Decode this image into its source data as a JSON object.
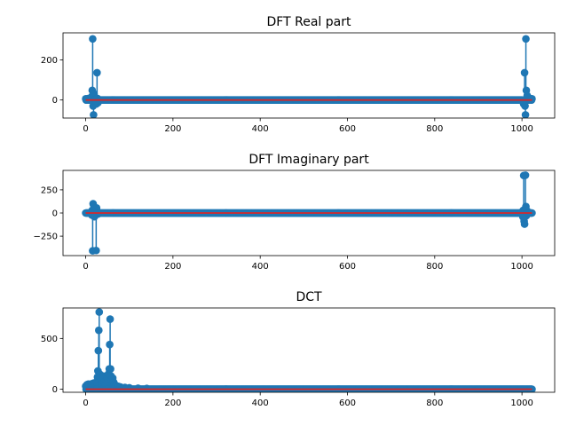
{
  "figure": {
    "colors": {
      "stem": "#1f77b4",
      "baseline": "#d62728"
    }
  },
  "chart_data": [
    {
      "type": "stem",
      "title": "DFT Real part",
      "xlim": [
        -52,
        1075
      ],
      "ylim": [
        -90,
        335
      ],
      "xticks": [
        0,
        200,
        400,
        600,
        800,
        1000
      ],
      "yticks": [
        0,
        200
      ],
      "n": 1024,
      "points": [
        [
          0,
          6
        ],
        [
          5,
          7
        ],
        [
          10,
          9
        ],
        [
          14,
          18
        ],
        [
          15,
          48
        ],
        [
          16,
          305
        ],
        [
          17,
          -30
        ],
        [
          18,
          -74
        ],
        [
          19,
          30
        ],
        [
          20,
          2
        ],
        [
          22,
          -12
        ],
        [
          24,
          -20
        ],
        [
          25,
          -8
        ],
        [
          26,
          136
        ],
        [
          27,
          8
        ],
        [
          28,
          -14
        ],
        [
          30,
          -4
        ],
        [
          1001,
          -4
        ],
        [
          1003,
          -12
        ],
        [
          1004,
          -20
        ],
        [
          1005,
          -8
        ],
        [
          1006,
          136
        ],
        [
          1007,
          -30
        ],
        [
          1008,
          -74
        ],
        [
          1009,
          305
        ],
        [
          1010,
          48
        ],
        [
          1012,
          22
        ],
        [
          1015,
          10
        ],
        [
          1019,
          8
        ],
        [
          1023,
          6
        ]
      ],
      "baseline": 0
    },
    {
      "type": "stem",
      "title": "DFT Imaginary part",
      "xlim": [
        -52,
        1075
      ],
      "ylim": [
        -460,
        460
      ],
      "xticks": [
        0,
        200,
        400,
        600,
        800,
        1000
      ],
      "yticks": [
        -250,
        0,
        250
      ],
      "n": 1024,
      "points": [
        [
          0,
          0
        ],
        [
          12,
          -8
        ],
        [
          14,
          -22
        ],
        [
          15,
          30
        ],
        [
          16,
          -408
        ],
        [
          17,
          100
        ],
        [
          18,
          30
        ],
        [
          19,
          70
        ],
        [
          20,
          -40
        ],
        [
          22,
          -15
        ],
        [
          24,
          -405
        ],
        [
          25,
          55
        ],
        [
          26,
          20
        ],
        [
          28,
          -12
        ],
        [
          1000,
          12
        ],
        [
          1001,
          -20
        ],
        [
          1002,
          -40
        ],
        [
          1003,
          30
        ],
        [
          1004,
          405
        ],
        [
          1005,
          -90
        ],
        [
          1006,
          -120
        ],
        [
          1007,
          20
        ],
        [
          1008,
          408
        ],
        [
          1009,
          70
        ],
        [
          1010,
          -30
        ],
        [
          1012,
          22
        ],
        [
          1014,
          8
        ],
        [
          1023,
          0
        ]
      ],
      "baseline": 0
    },
    {
      "type": "stem",
      "title": "DCT",
      "xlim": [
        -52,
        1075
      ],
      "ylim": [
        -30,
        800
      ],
      "xticks": [
        0,
        200,
        400,
        600,
        800,
        1000
      ],
      "yticks": [
        0,
        500
      ],
      "n": 1024,
      "points": [
        [
          0,
          30
        ],
        [
          3,
          45
        ],
        [
          6,
          50
        ],
        [
          9,
          40
        ],
        [
          12,
          52
        ],
        [
          15,
          55
        ],
        [
          18,
          60
        ],
        [
          20,
          62
        ],
        [
          22,
          45
        ],
        [
          25,
          70
        ],
        [
          27,
          120
        ],
        [
          28,
          180
        ],
        [
          29,
          380
        ],
        [
          30,
          580
        ],
        [
          31,
          760
        ],
        [
          32,
          150
        ],
        [
          33,
          110
        ],
        [
          34,
          80
        ],
        [
          36,
          60
        ],
        [
          38,
          90
        ],
        [
          40,
          130
        ],
        [
          42,
          70
        ],
        [
          45,
          50
        ],
        [
          48,
          80
        ],
        [
          50,
          110
        ],
        [
          52,
          150
        ],
        [
          54,
          200
        ],
        [
          55,
          440
        ],
        [
          56,
          690
        ],
        [
          57,
          200
        ],
        [
          58,
          130
        ],
        [
          60,
          90
        ],
        [
          62,
          110
        ],
        [
          64,
          70
        ],
        [
          66,
          50
        ],
        [
          68,
          40
        ],
        [
          70,
          35
        ],
        [
          75,
          28
        ],
        [
          80,
          22
        ],
        [
          90,
          18
        ],
        [
          100,
          14
        ],
        [
          120,
          10
        ],
        [
          140,
          8
        ]
      ],
      "baseline": 0
    }
  ]
}
